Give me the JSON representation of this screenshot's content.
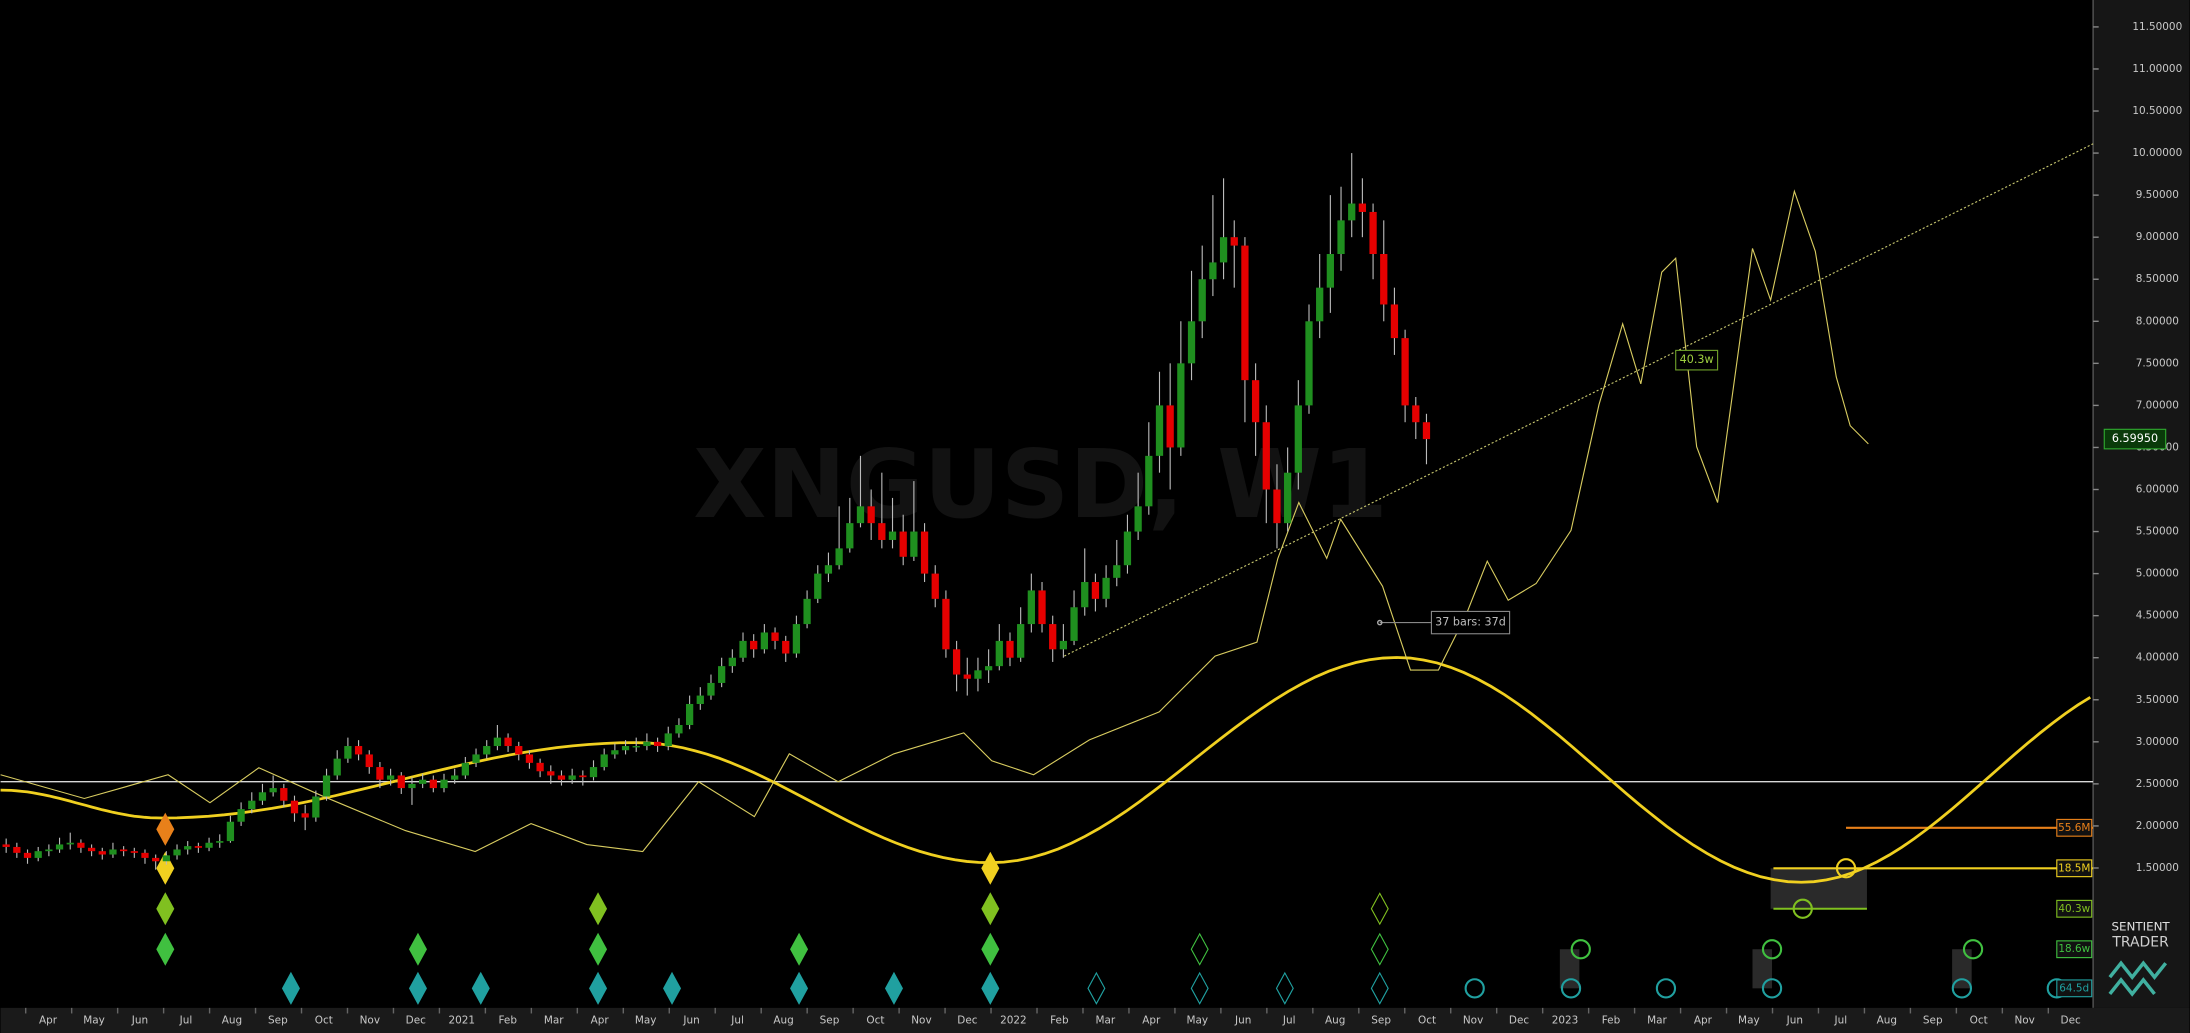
{
  "watermark": "XNGUSD, W1",
  "logo": [
    "SENTIENT",
    "TRADER"
  ],
  "chart_data": {
    "type": "candlestick",
    "colors": {
      "up": "#1f8f1f",
      "down": "#e60000"
    },
    "ylim": [
      -0.13,
      11.82
    ],
    "yticks": [
      {
        "value": 1.5,
        "label": "1.50000"
      },
      {
        "value": 2,
        "label": "2.00000"
      },
      {
        "value": 2.5,
        "label": "2.50000"
      },
      {
        "value": 3,
        "label": "3.00000"
      },
      {
        "value": 3.5,
        "label": "3.50000"
      },
      {
        "value": 4,
        "label": "4.00000"
      },
      {
        "value": 4.5,
        "label": "4.50000"
      },
      {
        "value": 5,
        "label": "5.00000"
      },
      {
        "value": 5.5,
        "label": "5.50000"
      },
      {
        "value": 6,
        "label": "6.00000"
      },
      {
        "value": 6.5,
        "label": "6.50000"
      },
      {
        "value": 7,
        "label": "7.00000"
      },
      {
        "value": 7.5,
        "label": "7.50000"
      },
      {
        "value": 8,
        "label": "8.00000"
      },
      {
        "value": 8.5,
        "label": "8.50000"
      },
      {
        "value": 9,
        "label": "9.00000"
      },
      {
        "value": 9.5,
        "label": "9.50000"
      },
      {
        "value": 10,
        "label": "10.00000"
      },
      {
        "value": 10.5,
        "label": "10.50000"
      },
      {
        "value": 11,
        "label": "11.00000"
      },
      {
        "value": 11.5,
        "label": "11.50000"
      }
    ],
    "last_price": {
      "value": 6.5995,
      "label": "6.59950"
    },
    "time_labels": [
      "Apr",
      "May",
      "Jun",
      "Jul",
      "Aug",
      "Sep",
      "Oct",
      "Nov",
      "Dec",
      "2021",
      "Feb",
      "Mar",
      "Apr",
      "May",
      "Jun",
      "Jul",
      "Aug",
      "Sep",
      "Oct",
      "Nov",
      "Dec",
      "2022",
      "Feb",
      "Mar",
      "Apr",
      "May",
      "Jun",
      "Jul",
      "Aug",
      "Sep",
      "Oct",
      "Nov",
      "Dec",
      "2023",
      "Feb",
      "Mar",
      "Apr",
      "May",
      "Jun",
      "Jul",
      "Aug",
      "Sep",
      "Oct",
      "Nov",
      "Dec"
    ],
    "annotations": {
      "cycle_label": "40.3w",
      "bars_label": "37 bars: 37d"
    },
    "cycle_labels": [
      "55.6M",
      "18.5M",
      "40.3w",
      "18.6w",
      "64.5d"
    ],
    "candles": [
      [
        1.78,
        1.85,
        1.68,
        1.75
      ],
      [
        1.75,
        1.8,
        1.62,
        1.68
      ],
      [
        1.68,
        1.72,
        1.55,
        1.62
      ],
      [
        1.62,
        1.75,
        1.58,
        1.7
      ],
      [
        1.7,
        1.78,
        1.64,
        1.72
      ],
      [
        1.72,
        1.86,
        1.68,
        1.78
      ],
      [
        1.78,
        1.92,
        1.72,
        1.8
      ],
      [
        1.8,
        1.84,
        1.68,
        1.74
      ],
      [
        1.74,
        1.78,
        1.64,
        1.7
      ],
      [
        1.7,
        1.74,
        1.6,
        1.66
      ],
      [
        1.66,
        1.8,
        1.62,
        1.72
      ],
      [
        1.72,
        1.76,
        1.64,
        1.7
      ],
      [
        1.7,
        1.74,
        1.62,
        1.68
      ],
      [
        1.68,
        1.72,
        1.55,
        1.62
      ],
      [
        1.62,
        1.66,
        1.48,
        1.58
      ],
      [
        1.58,
        1.7,
        1.54,
        1.65
      ],
      [
        1.65,
        1.78,
        1.6,
        1.72
      ],
      [
        1.72,
        1.82,
        1.66,
        1.76
      ],
      [
        1.76,
        1.8,
        1.68,
        1.74
      ],
      [
        1.74,
        1.86,
        1.7,
        1.8
      ],
      [
        1.8,
        1.9,
        1.74,
        1.82
      ],
      [
        1.82,
        2.12,
        1.8,
        2.05
      ],
      [
        2.05,
        2.28,
        2.0,
        2.2
      ],
      [
        2.2,
        2.4,
        2.15,
        2.3
      ],
      [
        2.3,
        2.5,
        2.25,
        2.4
      ],
      [
        2.4,
        2.6,
        2.35,
        2.45
      ],
      [
        2.45,
        2.5,
        2.22,
        2.3
      ],
      [
        2.3,
        2.36,
        2.05,
        2.15
      ],
      [
        2.15,
        2.25,
        1.95,
        2.1
      ],
      [
        2.1,
        2.42,
        2.05,
        2.35
      ],
      [
        2.35,
        2.68,
        2.3,
        2.6
      ],
      [
        2.6,
        2.9,
        2.55,
        2.8
      ],
      [
        2.8,
        3.05,
        2.75,
        2.95
      ],
      [
        2.95,
        3.02,
        2.78,
        2.85
      ],
      [
        2.85,
        2.9,
        2.62,
        2.7
      ],
      [
        2.7,
        2.76,
        2.45,
        2.55
      ],
      [
        2.55,
        2.68,
        2.48,
        2.6
      ],
      [
        2.6,
        2.64,
        2.38,
        2.45
      ],
      [
        2.45,
        2.58,
        2.25,
        2.5
      ],
      [
        2.5,
        2.62,
        2.45,
        2.55
      ],
      [
        2.55,
        2.6,
        2.4,
        2.45
      ],
      [
        2.45,
        2.62,
        2.4,
        2.55
      ],
      [
        2.55,
        2.68,
        2.5,
        2.6
      ],
      [
        2.6,
        2.82,
        2.56,
        2.75
      ],
      [
        2.75,
        2.92,
        2.7,
        2.85
      ],
      [
        2.85,
        3.02,
        2.8,
        2.95
      ],
      [
        2.95,
        3.2,
        2.9,
        3.05
      ],
      [
        3.05,
        3.1,
        2.88,
        2.95
      ],
      [
        2.95,
        3.0,
        2.78,
        2.85
      ],
      [
        2.85,
        2.9,
        2.68,
        2.75
      ],
      [
        2.75,
        2.8,
        2.58,
        2.65
      ],
      [
        2.65,
        2.72,
        2.5,
        2.6
      ],
      [
        2.6,
        2.66,
        2.48,
        2.55
      ],
      [
        2.55,
        2.68,
        2.5,
        2.6
      ],
      [
        2.6,
        2.66,
        2.48,
        2.58
      ],
      [
        2.58,
        2.78,
        2.54,
        2.7
      ],
      [
        2.7,
        2.92,
        2.66,
        2.85
      ],
      [
        2.85,
        2.98,
        2.8,
        2.9
      ],
      [
        2.9,
        3.02,
        2.85,
        2.95
      ],
      [
        2.95,
        3.05,
        2.88,
        2.95
      ],
      [
        2.95,
        3.1,
        2.9,
        3.0
      ],
      [
        3.0,
        3.05,
        2.88,
        2.95
      ],
      [
        2.95,
        3.18,
        2.9,
        3.1
      ],
      [
        3.1,
        3.28,
        3.05,
        3.2
      ],
      [
        3.2,
        3.55,
        3.15,
        3.45
      ],
      [
        3.45,
        3.65,
        3.38,
        3.55
      ],
      [
        3.55,
        3.8,
        3.5,
        3.7
      ],
      [
        3.7,
        4.0,
        3.65,
        3.9
      ],
      [
        3.9,
        4.1,
        3.82,
        4.0
      ],
      [
        4.0,
        4.3,
        3.95,
        4.2
      ],
      [
        4.2,
        4.28,
        4.0,
        4.1
      ],
      [
        4.1,
        4.4,
        4.05,
        4.3
      ],
      [
        4.3,
        4.36,
        4.1,
        4.2
      ],
      [
        4.2,
        4.26,
        3.95,
        4.05
      ],
      [
        4.05,
        4.5,
        4.0,
        4.4
      ],
      [
        4.4,
        4.8,
        4.35,
        4.7
      ],
      [
        4.7,
        5.1,
        4.65,
        5.0
      ],
      [
        5.0,
        5.25,
        4.9,
        5.1
      ],
      [
        5.1,
        5.8,
        5.05,
        5.3
      ],
      [
        5.3,
        5.9,
        5.25,
        5.6
      ],
      [
        5.6,
        6.4,
        5.55,
        5.8
      ],
      [
        5.8,
        6.0,
        5.4,
        5.6
      ],
      [
        5.6,
        6.2,
        5.3,
        5.4
      ],
      [
        5.4,
        5.9,
        5.3,
        5.5
      ],
      [
        5.5,
        5.7,
        5.1,
        5.2
      ],
      [
        5.2,
        6.1,
        5.15,
        5.5
      ],
      [
        5.5,
        5.6,
        4.9,
        5.0
      ],
      [
        5.0,
        5.1,
        4.6,
        4.7
      ],
      [
        4.7,
        4.8,
        4.0,
        4.1
      ],
      [
        4.1,
        4.2,
        3.6,
        3.8
      ],
      [
        3.8,
        4.0,
        3.55,
        3.75
      ],
      [
        3.75,
        4.0,
        3.6,
        3.85
      ],
      [
        3.85,
        4.1,
        3.7,
        3.9
      ],
      [
        3.9,
        4.4,
        3.85,
        4.2
      ],
      [
        4.2,
        4.3,
        3.9,
        4.0
      ],
      [
        4.0,
        4.6,
        3.95,
        4.4
      ],
      [
        4.4,
        5.0,
        4.3,
        4.8
      ],
      [
        4.8,
        4.9,
        4.3,
        4.4
      ],
      [
        4.4,
        4.5,
        3.95,
        4.1
      ],
      [
        4.1,
        4.4,
        4.0,
        4.2
      ],
      [
        4.2,
        4.8,
        4.15,
        4.6
      ],
      [
        4.6,
        5.3,
        4.5,
        4.9
      ],
      [
        4.9,
        5.0,
        4.55,
        4.7
      ],
      [
        4.7,
        5.1,
        4.6,
        4.95
      ],
      [
        4.95,
        5.4,
        4.85,
        5.1
      ],
      [
        5.1,
        5.7,
        5.0,
        5.5
      ],
      [
        5.5,
        6.2,
        5.4,
        5.8
      ],
      [
        5.8,
        6.8,
        5.7,
        6.4
      ],
      [
        6.4,
        7.4,
        6.2,
        7.0
      ],
      [
        7.0,
        7.5,
        6.0,
        6.5
      ],
      [
        6.5,
        8.0,
        6.4,
        7.5
      ],
      [
        7.5,
        8.6,
        7.3,
        8.0
      ],
      [
        8.0,
        8.9,
        7.8,
        8.5
      ],
      [
        8.5,
        9.5,
        8.3,
        8.7
      ],
      [
        8.7,
        9.7,
        8.5,
        9.0
      ],
      [
        9.0,
        9.2,
        8.4,
        8.9
      ],
      [
        8.9,
        9.0,
        6.8,
        7.3
      ],
      [
        7.3,
        7.5,
        6.4,
        6.8
      ],
      [
        6.8,
        7.0,
        5.6,
        6.0
      ],
      [
        6.0,
        6.3,
        5.3,
        5.6
      ],
      [
        5.6,
        6.5,
        5.5,
        6.2
      ],
      [
        6.2,
        7.3,
        6.0,
        7.0
      ],
      [
        7.0,
        8.2,
        6.9,
        8.0
      ],
      [
        8.0,
        8.8,
        7.8,
        8.4
      ],
      [
        8.4,
        9.5,
        8.1,
        8.8
      ],
      [
        8.8,
        9.6,
        8.6,
        9.2
      ],
      [
        9.2,
        10.0,
        9.0,
        9.4
      ],
      [
        9.4,
        9.7,
        9.0,
        9.3
      ],
      [
        9.3,
        9.4,
        8.5,
        8.8
      ],
      [
        8.8,
        9.2,
        8.0,
        8.2
      ],
      [
        8.2,
        8.4,
        7.6,
        7.8
      ],
      [
        7.8,
        7.9,
        6.8,
        7.0
      ],
      [
        7.0,
        7.1,
        6.6,
        6.8
      ],
      [
        6.8,
        6.9,
        6.3,
        6.5995
      ]
    ]
  }
}
